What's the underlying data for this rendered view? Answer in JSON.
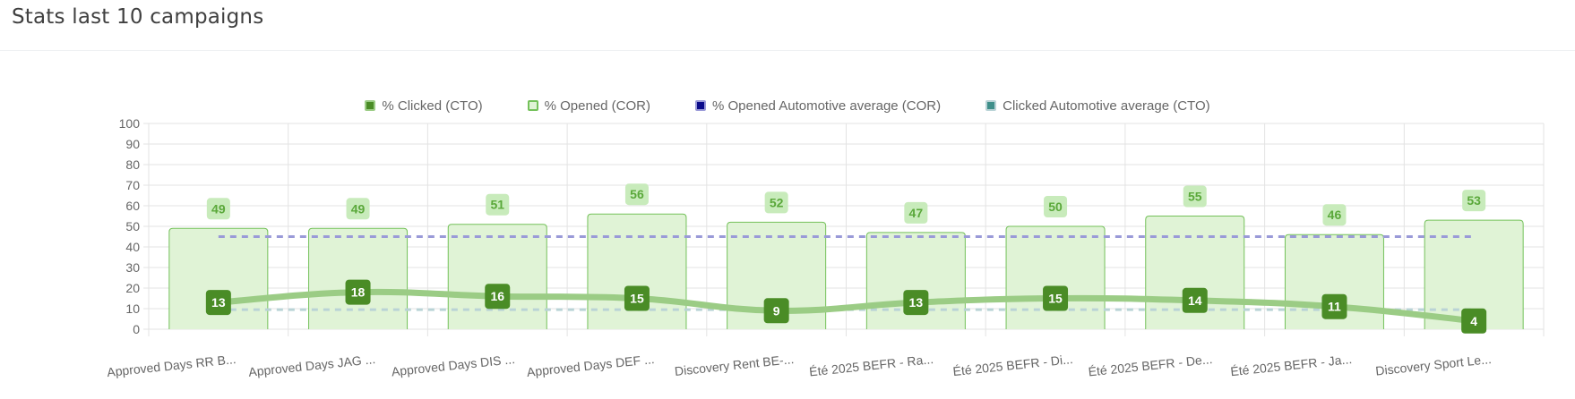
{
  "panel": {
    "title": "Stats last 10 campaigns"
  },
  "colors": {
    "clicked": "#4a8c26",
    "clicked_line": "#9bcc85",
    "opened_fill": "#e0f3d6",
    "opened_border": "#74c15a",
    "opened_label_bg": "#c8ebbb",
    "opened_label_text": "#5aa83a",
    "opened_avg": "#9a9ad8",
    "clicked_avg": "#b9d3d6",
    "grid": "#e3e3e3",
    "axis_text": "#666666"
  },
  "legend": [
    {
      "label": "% Clicked (CTO)",
      "icon": "square-filled-dark-green",
      "fill": "#4a8c26",
      "border": "#9bcc85"
    },
    {
      "label": "% Opened (COR)",
      "icon": "square-filled-light-green",
      "fill": "#e0f3d6",
      "border": "#74c15a"
    },
    {
      "label": "% Opened Automotive average (COR)",
      "icon": "square-filled-navy",
      "fill": "#0b0b8a",
      "border": "#9a9ad8"
    },
    {
      "label": "Clicked Automotive average (CTO)",
      "icon": "square-filled-teal",
      "fill": "#3f8f8a",
      "border": "#b9d3d6"
    }
  ],
  "chart_data": {
    "type": "bar",
    "categories": [
      "Approved Days RR B...",
      "Approved Days JAG ...",
      "Approved Days DIS ...",
      "Approved Days DEF ...",
      "Discovery Rent BE-...",
      "Été 2025 BEFR - Ra...",
      "Été 2025 BEFR - Di...",
      "Été 2025 BEFR - De...",
      "Été 2025 BEFR - Ja...",
      "Discovery Sport Le..."
    ],
    "series": [
      {
        "name": "% Opened (COR)",
        "type": "bar",
        "values": [
          49,
          49,
          51,
          56,
          52,
          47,
          50,
          55,
          46,
          53
        ]
      },
      {
        "name": "% Clicked (CTO)",
        "type": "line",
        "values": [
          13,
          18,
          16,
          15,
          9,
          13,
          15,
          14,
          11,
          4
        ]
      },
      {
        "name": "% Opened Automotive average (COR)",
        "type": "line",
        "style": "dashed",
        "values": [
          45,
          45,
          45,
          45,
          45,
          45,
          45,
          45,
          45,
          45
        ]
      },
      {
        "name": "Clicked Automotive average (CTO)",
        "type": "line",
        "style": "dashed",
        "values": [
          9.5,
          9.5,
          9.5,
          9.5,
          9.5,
          9.5,
          9.5,
          9.5,
          9.5,
          9.5
        ]
      }
    ],
    "ylim": [
      0,
      100
    ],
    "yticks": [
      "100",
      "90",
      "80",
      "70",
      "60",
      "50",
      "40",
      "30",
      "20",
      "10",
      "0"
    ],
    "grid": true,
    "legend_position": "top-center"
  }
}
